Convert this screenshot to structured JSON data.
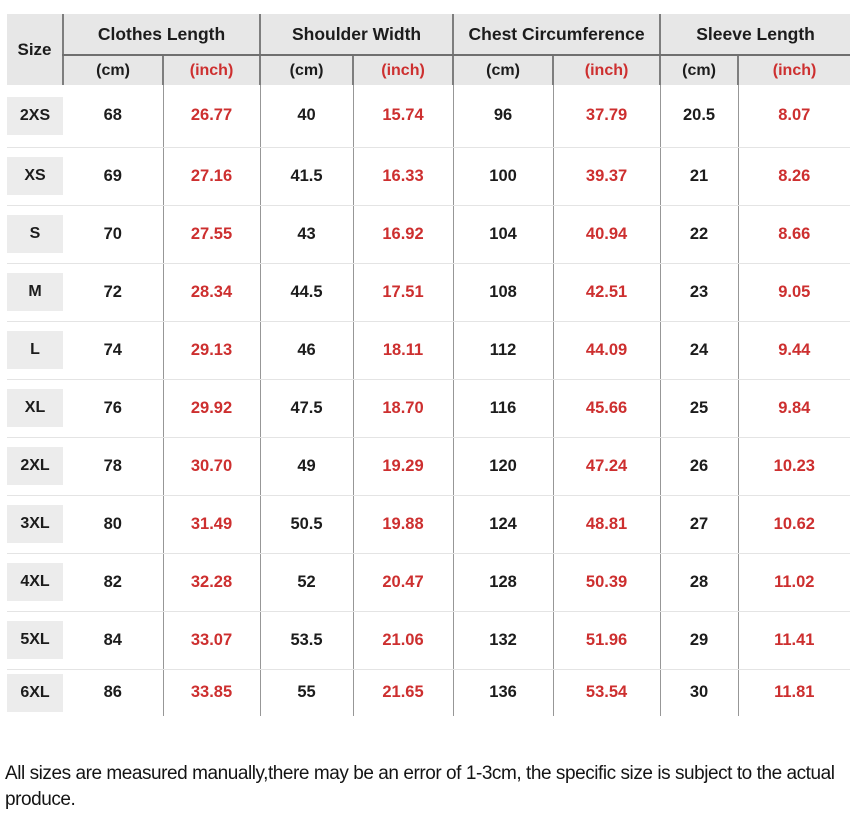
{
  "chart_data": {
    "type": "table",
    "corner_label": "Size",
    "column_groups": [
      "Clothes Length",
      "Shoulder Width",
      "Chest Circumference",
      "Sleeve Length"
    ],
    "unit_labels": {
      "cm": "(cm)",
      "inch": "(inch)"
    },
    "columns": [
      "Size",
      "Clothes Length (cm)",
      "Clothes Length (inch)",
      "Shoulder Width (cm)",
      "Shoulder Width (inch)",
      "Chest Circumference (cm)",
      "Chest Circumference (inch)",
      "Sleeve Length (cm)",
      "Sleeve Length (inch)"
    ],
    "rows": [
      {
        "size": "2XS",
        "values": [
          "68",
          "26.77",
          "40",
          "15.74",
          "96",
          "37.79",
          "20.5",
          "8.07"
        ]
      },
      {
        "size": "XS",
        "values": [
          "69",
          "27.16",
          "41.5",
          "16.33",
          "100",
          "39.37",
          "21",
          "8.26"
        ]
      },
      {
        "size": "S",
        "values": [
          "70",
          "27.55",
          "43",
          "16.92",
          "104",
          "40.94",
          "22",
          "8.66"
        ]
      },
      {
        "size": "M",
        "values": [
          "72",
          "28.34",
          "44.5",
          "17.51",
          "108",
          "42.51",
          "23",
          "9.05"
        ]
      },
      {
        "size": "L",
        "values": [
          "74",
          "29.13",
          "46",
          "18.11",
          "112",
          "44.09",
          "24",
          "9.44"
        ]
      },
      {
        "size": "XL",
        "values": [
          "76",
          "29.92",
          "47.5",
          "18.70",
          "116",
          "45.66",
          "25",
          "9.84"
        ]
      },
      {
        "size": "2XL",
        "values": [
          "78",
          "30.70",
          "49",
          "19.29",
          "120",
          "47.24",
          "26",
          "10.23"
        ]
      },
      {
        "size": "3XL",
        "values": [
          "80",
          "31.49",
          "50.5",
          "19.88",
          "124",
          "48.81",
          "27",
          "10.62"
        ]
      },
      {
        "size": "4XL",
        "values": [
          "82",
          "32.28",
          "52",
          "20.47",
          "128",
          "50.39",
          "28",
          "11.02"
        ]
      },
      {
        "size": "5XL",
        "values": [
          "84",
          "33.07",
          "53.5",
          "21.06",
          "132",
          "51.96",
          "29",
          "11.41"
        ]
      },
      {
        "size": "6XL",
        "values": [
          "86",
          "33.85",
          "55",
          "21.65",
          "136",
          "53.54",
          "30",
          "11.81"
        ]
      }
    ]
  },
  "note": "All sizes are measured manually,there may be an error of 1-3cm, the specific size is subject to the actual produce.",
  "colors": {
    "accent_red": "#cd2f2f",
    "text": "#1c1c1c",
    "header_bg": "#e7e7e7",
    "chip_bg": "#ececec",
    "grid_dark": "#7e7e7e",
    "grid_mid": "#979797",
    "grid_light": "#e4e4e4"
  }
}
